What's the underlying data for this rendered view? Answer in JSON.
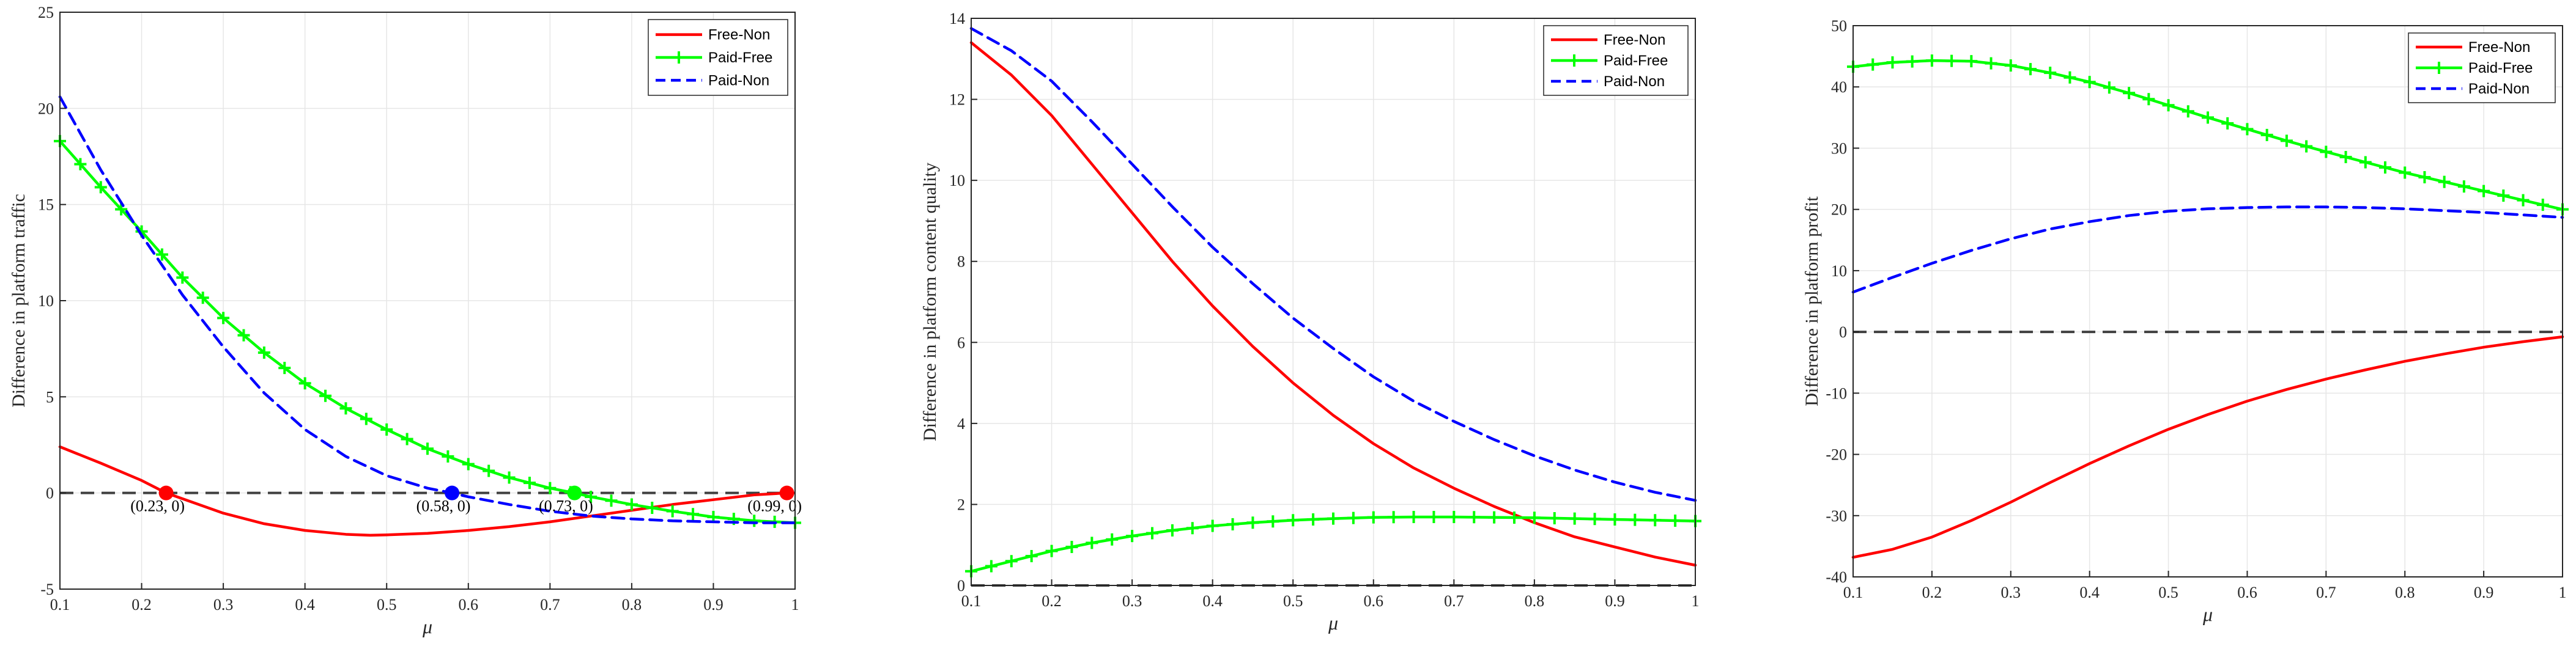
{
  "chart_data": [
    {
      "type": "line",
      "xlabel": "μ",
      "ylabel": "Difference in platform traffic",
      "xlim": [
        0.1,
        1
      ],
      "ylim": [
        -5,
        25
      ],
      "xticks": [
        0.1,
        0.2,
        0.3,
        0.4,
        0.5,
        0.6,
        0.7,
        0.8,
        0.9,
        1
      ],
      "xtick_labels": [
        "0.1",
        "0.2",
        "0.3",
        "0.4",
        "0.5",
        "0.6",
        "0.7",
        "0.8",
        "0.9",
        "1"
      ],
      "yticks": [
        -5,
        0,
        5,
        10,
        15,
        20,
        25
      ],
      "ytick_labels": [
        "-5",
        "0",
        "5",
        "10",
        "15",
        "20",
        "25"
      ],
      "grid": true,
      "legend_position": "top-right",
      "baseline": 0,
      "series": [
        {
          "name": "Free-Non",
          "color": "#ff0000",
          "style": "solid",
          "x": [
            0.1,
            0.15,
            0.2,
            0.23,
            0.3,
            0.35,
            0.4,
            0.45,
            0.48,
            0.5,
            0.55,
            0.6,
            0.65,
            0.7,
            0.75,
            0.8,
            0.85,
            0.9,
            0.95,
            0.99
          ],
          "y": [
            2.4,
            1.55,
            0.65,
            0.0,
            -1.05,
            -1.6,
            -1.95,
            -2.15,
            -2.2,
            -2.18,
            -2.1,
            -1.95,
            -1.75,
            -1.5,
            -1.2,
            -0.9,
            -0.6,
            -0.35,
            -0.1,
            0.0
          ]
        },
        {
          "name": "Paid-Free",
          "color": "#00ff00",
          "style": "solid-marker",
          "marker": "+",
          "x": [
            0.1,
            0.15,
            0.2,
            0.25,
            0.3,
            0.35,
            0.4,
            0.45,
            0.5,
            0.55,
            0.6,
            0.65,
            0.7,
            0.73,
            0.75,
            0.8,
            0.85,
            0.9,
            0.95,
            1
          ],
          "y": [
            18.3,
            15.9,
            13.6,
            11.2,
            9.1,
            7.3,
            5.7,
            4.4,
            3.3,
            2.3,
            1.5,
            0.8,
            0.25,
            0.0,
            -0.2,
            -0.6,
            -0.95,
            -1.25,
            -1.45,
            -1.55
          ]
        },
        {
          "name": "Paid-Non",
          "color": "#0000ff",
          "style": "dashed",
          "x": [
            0.1,
            0.15,
            0.2,
            0.25,
            0.3,
            0.35,
            0.4,
            0.45,
            0.5,
            0.55,
            0.58,
            0.6,
            0.65,
            0.7,
            0.75,
            0.8,
            0.85,
            0.9,
            0.95,
            1
          ],
          "y": [
            20.6,
            16.8,
            13.4,
            10.3,
            7.6,
            5.2,
            3.3,
            1.9,
            0.9,
            0.25,
            0.0,
            -0.2,
            -0.6,
            -0.95,
            -1.2,
            -1.35,
            -1.45,
            -1.5,
            -1.55,
            -1.55
          ]
        }
      ],
      "points": [
        {
          "x": 0.23,
          "y": 0,
          "label": "(0.23, 0)",
          "color": "#ff0000"
        },
        {
          "x": 0.58,
          "y": 0,
          "label": "(0.58, 0)",
          "color": "#0000ff"
        },
        {
          "x": 0.73,
          "y": 0,
          "label": "(0.73, 0)",
          "color": "#00ff00"
        },
        {
          "x": 0.99,
          "y": 0,
          "label": "(0.99, 0)",
          "color": "#ff0000"
        }
      ]
    },
    {
      "type": "line",
      "xlabel": "μ",
      "ylabel": "Difference in platform content quality",
      "xlim": [
        0.1,
        1
      ],
      "ylim": [
        0,
        14
      ],
      "xticks": [
        0.1,
        0.2,
        0.3,
        0.4,
        0.5,
        0.6,
        0.7,
        0.8,
        0.9,
        1
      ],
      "xtick_labels": [
        "0.1",
        "0.2",
        "0.3",
        "0.4",
        "0.5",
        "0.6",
        "0.7",
        "0.8",
        "0.9",
        "1"
      ],
      "yticks": [
        0,
        2,
        4,
        6,
        8,
        10,
        12,
        14
      ],
      "ytick_labels": [
        "0",
        "2",
        "4",
        "6",
        "8",
        "10",
        "12",
        "14"
      ],
      "grid": true,
      "legend_position": "top-right",
      "baseline": 0,
      "series": [
        {
          "name": "Free-Non",
          "color": "#ff0000",
          "style": "solid",
          "x": [
            0.1,
            0.15,
            0.2,
            0.25,
            0.3,
            0.35,
            0.4,
            0.45,
            0.5,
            0.55,
            0.6,
            0.65,
            0.7,
            0.75,
            0.8,
            0.85,
            0.9,
            0.95,
            1
          ],
          "y": [
            13.4,
            12.6,
            11.6,
            10.4,
            9.2,
            8.0,
            6.9,
            5.9,
            5.0,
            4.2,
            3.5,
            2.9,
            2.4,
            1.95,
            1.55,
            1.2,
            0.95,
            0.7,
            0.5
          ]
        },
        {
          "name": "Paid-Free",
          "color": "#00ff00",
          "style": "solid-marker",
          "marker": "+",
          "x": [
            0.1,
            0.15,
            0.2,
            0.25,
            0.3,
            0.35,
            0.4,
            0.45,
            0.5,
            0.55,
            0.6,
            0.65,
            0.7,
            0.75,
            0.8,
            0.85,
            0.9,
            0.95,
            1
          ],
          "y": [
            0.35,
            0.6,
            0.85,
            1.05,
            1.22,
            1.36,
            1.47,
            1.55,
            1.61,
            1.65,
            1.68,
            1.69,
            1.69,
            1.68,
            1.67,
            1.65,
            1.63,
            1.61,
            1.59
          ]
        },
        {
          "name": "Paid-Non",
          "color": "#0000ff",
          "style": "dashed",
          "x": [
            0.1,
            0.15,
            0.2,
            0.25,
            0.3,
            0.35,
            0.4,
            0.45,
            0.5,
            0.55,
            0.6,
            0.65,
            0.7,
            0.75,
            0.8,
            0.85,
            0.9,
            0.95,
            1
          ],
          "y": [
            13.75,
            13.2,
            12.45,
            11.45,
            10.4,
            9.35,
            8.35,
            7.45,
            6.6,
            5.85,
            5.15,
            4.55,
            4.05,
            3.6,
            3.2,
            2.85,
            2.55,
            2.3,
            2.1
          ]
        }
      ]
    },
    {
      "type": "line",
      "xlabel": "μ",
      "ylabel": "Difference in platform profit",
      "xlim": [
        0.1,
        1
      ],
      "ylim": [
        -40,
        50
      ],
      "xticks": [
        0.1,
        0.2,
        0.3,
        0.4,
        0.5,
        0.6,
        0.7,
        0.8,
        0.9,
        1
      ],
      "xtick_labels": [
        "0.1",
        "0.2",
        "0.3",
        "0.4",
        "0.5",
        "0.6",
        "0.7",
        "0.8",
        "0.9",
        "1"
      ],
      "yticks": [
        -40,
        -30,
        -20,
        -10,
        0,
        10,
        20,
        30,
        40,
        50
      ],
      "ytick_labels": [
        "-40",
        "-30",
        "-20",
        "-10",
        "0",
        "10",
        "20",
        "30",
        "40",
        "50"
      ],
      "grid": true,
      "legend_position": "top-right",
      "baseline": 0,
      "series": [
        {
          "name": "Free-Non",
          "color": "#ff0000",
          "style": "solid",
          "x": [
            0.1,
            0.15,
            0.2,
            0.25,
            0.3,
            0.35,
            0.4,
            0.45,
            0.5,
            0.55,
            0.6,
            0.65,
            0.7,
            0.75,
            0.8,
            0.85,
            0.9,
            0.95,
            1
          ],
          "y": [
            -36.8,
            -35.5,
            -33.5,
            -30.8,
            -27.8,
            -24.6,
            -21.5,
            -18.6,
            -15.9,
            -13.5,
            -11.3,
            -9.4,
            -7.7,
            -6.2,
            -4.8,
            -3.6,
            -2.5,
            -1.6,
            -0.8
          ]
        },
        {
          "name": "Paid-Free",
          "color": "#00ff00",
          "style": "solid-marker",
          "marker": "+",
          "x": [
            0.1,
            0.15,
            0.2,
            0.25,
            0.3,
            0.35,
            0.4,
            0.45,
            0.5,
            0.55,
            0.6,
            0.65,
            0.7,
            0.75,
            0.8,
            0.85,
            0.9,
            0.95,
            1
          ],
          "y": [
            43.3,
            44.0,
            44.3,
            44.2,
            43.5,
            42.3,
            40.8,
            39.0,
            37.0,
            35.0,
            33.1,
            31.2,
            29.4,
            27.7,
            26.0,
            24.5,
            23.0,
            21.5,
            20.0
          ]
        },
        {
          "name": "Paid-Non",
          "color": "#0000ff",
          "style": "dashed",
          "x": [
            0.1,
            0.15,
            0.2,
            0.25,
            0.3,
            0.35,
            0.4,
            0.45,
            0.5,
            0.55,
            0.6,
            0.65,
            0.7,
            0.75,
            0.8,
            0.85,
            0.9,
            0.95,
            1
          ],
          "y": [
            6.5,
            8.9,
            11.2,
            13.3,
            15.2,
            16.8,
            18.0,
            19.0,
            19.7,
            20.1,
            20.3,
            20.4,
            20.4,
            20.3,
            20.1,
            19.8,
            19.5,
            19.1,
            18.7
          ]
        }
      ]
    }
  ]
}
